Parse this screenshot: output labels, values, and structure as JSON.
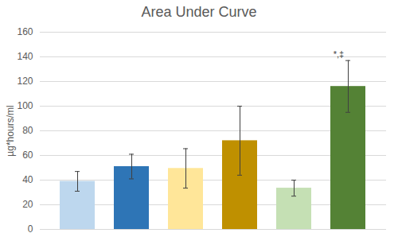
{
  "chart_data": {
    "type": "bar",
    "title": "Area Under Curve",
    "y_label": "µg*hours/ml",
    "categories": [
      null,
      null,
      null,
      null,
      null,
      null
    ],
    "values": [
      39,
      51,
      49.5,
      72,
      33.5,
      116
    ],
    "errors": [
      8,
      10,
      16,
      28,
      6.5,
      21
    ],
    "annotations": [
      null,
      null,
      null,
      null,
      null,
      "*,‡"
    ],
    "colors": [
      "#bdd7ee",
      "#2e75b6",
      "#ffe699",
      "#bf9000",
      "#c5e0b4",
      "#548235"
    ],
    "ylim": [
      0,
      160
    ],
    "yticks": [
      0,
      20,
      40,
      60,
      80,
      100,
      120,
      140,
      160
    ],
    "grid": true,
    "tick_labels": "y"
  }
}
